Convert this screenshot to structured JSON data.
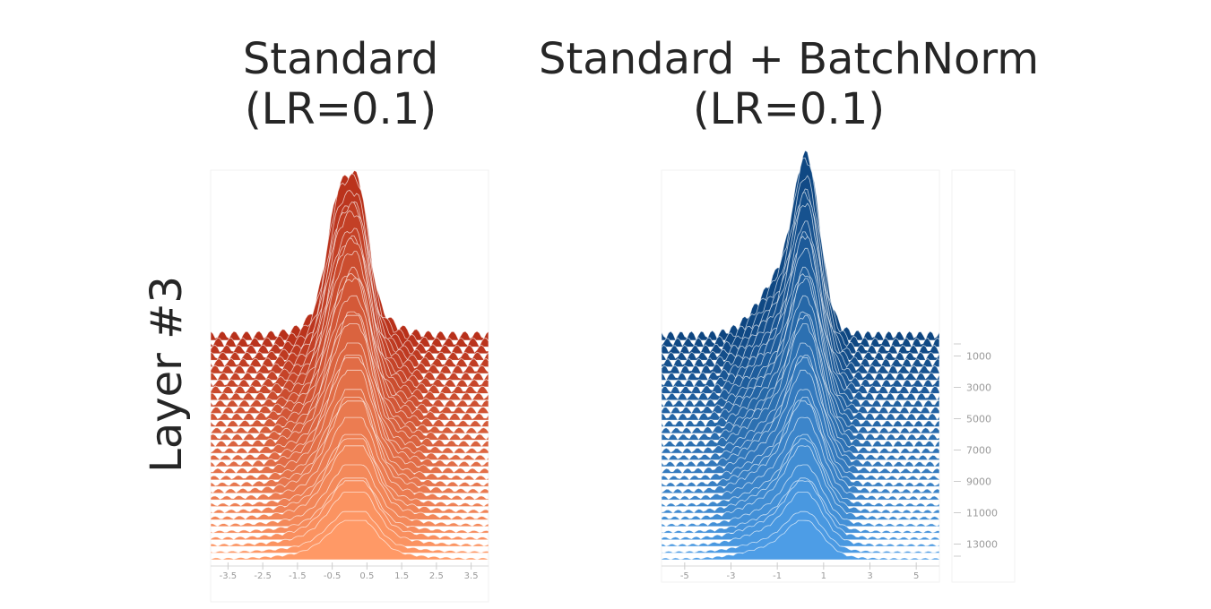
{
  "titles": {
    "left_line1": "Standard",
    "left_line2": "(LR=0.1)",
    "right_line1": "Standard + BatchNorm",
    "right_line2": "(LR=0.1)"
  },
  "row_label": "Layer #3",
  "chart_data": [
    {
      "type": "area",
      "subtype": "ridgeline-histogram",
      "title": "Standard (LR=0.1)",
      "color_front": "#ff9966",
      "color_back": "#b8301a",
      "x_ticks": [
        "-3.5",
        "-2.5",
        "-1.5",
        "-0.5",
        "0.5",
        "1.5",
        "2.5",
        "3.5"
      ],
      "x_tick_values": [
        -3.5,
        -2.5,
        -1.5,
        -0.5,
        0.5,
        1.5,
        2.5,
        3.5
      ],
      "xlim": [
        -4.0,
        4.0
      ],
      "steps": [
        0,
        14000
      ],
      "distribution": {
        "peak_step": 0,
        "peak_center": -0.3,
        "secondary_peak": 0.3,
        "spread_front": 1.0,
        "spread_back": 0.6
      }
    },
    {
      "type": "area",
      "subtype": "ridgeline-histogram",
      "title": "Standard + BatchNorm (LR=0.1)",
      "color_front": "#4d9de6",
      "color_back": "#0d4580",
      "x_ticks": [
        "-5",
        "-3",
        "-1",
        "1",
        "3",
        "5"
      ],
      "x_tick_values": [
        -5,
        -3,
        -1,
        1,
        3,
        5
      ],
      "xlim": [
        -6.0,
        6.0
      ],
      "step_ticks": [
        "1000",
        "3000",
        "5000",
        "7000",
        "9000",
        "11000",
        "13000"
      ],
      "steps": [
        0,
        14000
      ],
      "distribution": {
        "peak_center": 0.3,
        "spread_front": 1.2,
        "spread_back": 0.9
      }
    }
  ]
}
